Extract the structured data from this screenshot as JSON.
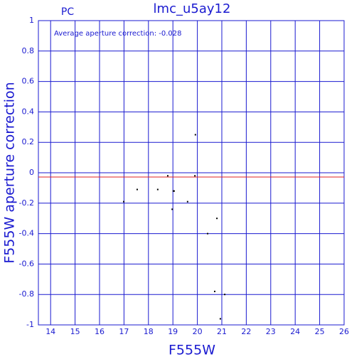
{
  "chart_data": {
    "type": "scatter",
    "title": "lmc_u5ay12",
    "subtitle": "PC",
    "annotation": "Average aperture correction: -0.028",
    "x_label": "F555W",
    "y_label": "F555W aperture correction",
    "x": [
      16.99,
      17.54,
      18.38,
      18.79,
      19.02,
      19.05,
      18.97,
      19.6,
      19.92,
      19.9,
      20.42,
      20.8,
      20.71,
      21.12,
      20.94
    ],
    "values": [
      -0.19,
      -0.11,
      -0.11,
      -0.02,
      -0.12,
      -0.12,
      -0.24,
      -0.19,
      0.25,
      -0.02,
      -0.4,
      -0.3,
      -0.78,
      -0.8,
      -0.96
    ],
    "color": "#000000",
    "hline": -0.028,
    "hline_color": "#e02020",
    "xlim": [
      13.5,
      26
    ],
    "xticks": [
      14,
      15,
      16,
      17,
      18,
      19,
      20,
      21,
      22,
      23,
      24,
      25,
      26
    ],
    "ylim": [
      -1,
      1
    ],
    "yticks": [
      -1,
      -0.8,
      -0.6,
      -0.4,
      -0.2,
      0,
      0.2,
      0.4,
      0.6,
      0.8,
      1
    ],
    "grid": true,
    "grid_color": "#1a1ad0"
  }
}
